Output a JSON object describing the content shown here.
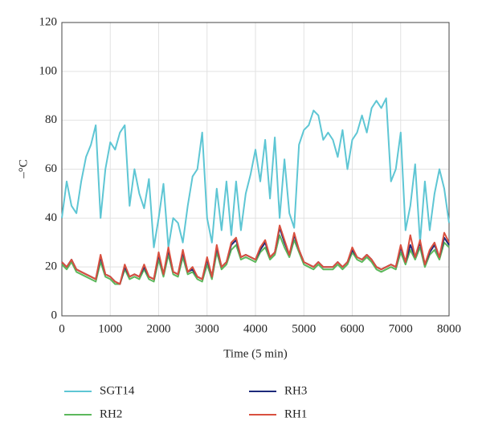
{
  "chart_data": {
    "type": "line",
    "x_label": "Time (5 min)",
    "y_label": "–°C",
    "x": [
      0,
      100,
      200,
      300,
      400,
      500,
      600,
      700,
      800,
      900,
      1000,
      1100,
      1200,
      1300,
      1400,
      1500,
      1600,
      1700,
      1800,
      1900,
      2000,
      2100,
      2200,
      2300,
      2400,
      2500,
      2600,
      2700,
      2800,
      2900,
      3000,
      3100,
      3200,
      3300,
      3400,
      3500,
      3600,
      3700,
      3800,
      3900,
      4000,
      4100,
      4200,
      4300,
      4400,
      4500,
      4600,
      4700,
      4800,
      4900,
      5000,
      5100,
      5200,
      5300,
      5400,
      5500,
      5600,
      5700,
      5800,
      5900,
      6000,
      6100,
      6200,
      6300,
      6400,
      6500,
      6600,
      6700,
      6800,
      6900,
      7000,
      7100,
      7200,
      7300,
      7400,
      7500,
      7600,
      7700,
      7800,
      7900,
      8000
    ],
    "series": [
      {
        "name": "SGT14",
        "color": "#5ec6d4",
        "values": [
          40,
          55,
          45,
          42,
          55,
          65,
          70,
          78,
          40,
          60,
          71,
          68,
          75,
          78,
          45,
          60,
          50,
          44,
          56,
          28,
          40,
          54,
          28,
          40,
          38,
          30,
          45,
          57,
          60,
          75,
          40,
          30,
          52,
          35,
          55,
          33,
          55,
          35,
          50,
          58,
          68,
          55,
          72,
          48,
          73,
          40,
          64,
          42,
          36,
          70,
          76,
          78,
          84,
          82,
          72,
          75,
          72,
          65,
          76,
          60,
          72,
          75,
          82,
          75,
          85,
          88,
          85,
          89,
          55,
          60,
          75,
          35,
          45,
          62,
          30,
          55,
          35,
          50,
          60,
          52,
          38
        ]
      },
      {
        "name": "RH2",
        "color": "#5cb85c",
        "values": [
          21,
          19,
          22,
          18,
          17,
          16,
          15,
          14,
          22,
          16,
          15,
          13,
          13,
          19,
          15,
          16,
          15,
          19,
          15,
          14,
          23,
          16,
          25,
          17,
          16,
          24,
          17,
          18,
          15,
          14,
          21,
          15,
          26,
          19,
          21,
          27,
          29,
          23,
          24,
          23,
          22,
          26,
          28,
          23,
          25,
          33,
          28,
          24,
          31,
          26,
          21,
          20,
          19,
          21,
          19,
          19,
          19,
          21,
          19,
          21,
          26,
          23,
          22,
          24,
          22,
          19,
          18,
          19,
          20,
          19,
          26,
          21,
          27,
          23,
          28,
          20,
          25,
          27,
          23,
          30,
          28
        ]
      },
      {
        "name": "RH3",
        "color": "#1c2a7a",
        "values": [
          22,
          20,
          23,
          19,
          18,
          17,
          16,
          15,
          24,
          17,
          16,
          14,
          13,
          20,
          16,
          17,
          16,
          20,
          16,
          15,
          25,
          17,
          27,
          18,
          17,
          26,
          18,
          19,
          16,
          15,
          23,
          16,
          28,
          20,
          22,
          29,
          31,
          24,
          25,
          24,
          23,
          27,
          30,
          24,
          26,
          36,
          30,
          25,
          33,
          27,
          22,
          21,
          20,
          22,
          20,
          20,
          20,
          22,
          20,
          22,
          27,
          24,
          23,
          25,
          23,
          20,
          19,
          20,
          21,
          20,
          28,
          22,
          29,
          24,
          30,
          21,
          26,
          29,
          24,
          32,
          29
        ]
      },
      {
        "name": "RH1",
        "color": "#d9503f",
        "values": [
          22,
          20,
          23,
          19,
          18,
          17,
          16,
          15,
          25,
          17,
          16,
          14,
          13,
          21,
          16,
          17,
          16,
          21,
          16,
          15,
          26,
          17,
          28,
          18,
          17,
          27,
          18,
          20,
          16,
          15,
          24,
          16,
          29,
          20,
          22,
          30,
          32,
          24,
          25,
          24,
          23,
          28,
          31,
          24,
          26,
          37,
          31,
          25,
          34,
          27,
          22,
          21,
          20,
          22,
          20,
          20,
          20,
          22,
          20,
          22,
          28,
          24,
          23,
          25,
          23,
          20,
          19,
          20,
          21,
          20,
          29,
          22,
          33,
          24,
          31,
          21,
          27,
          30,
          24,
          34,
          30
        ]
      }
    ],
    "xlim": [
      0,
      8000
    ],
    "xticks": [
      0,
      1000,
      2000,
      3000,
      4000,
      5000,
      6000,
      7000,
      8000
    ],
    "ylim": [
      0,
      120
    ],
    "yticks": [
      0,
      20,
      40,
      60,
      80,
      100,
      120
    ],
    "grid": true
  }
}
